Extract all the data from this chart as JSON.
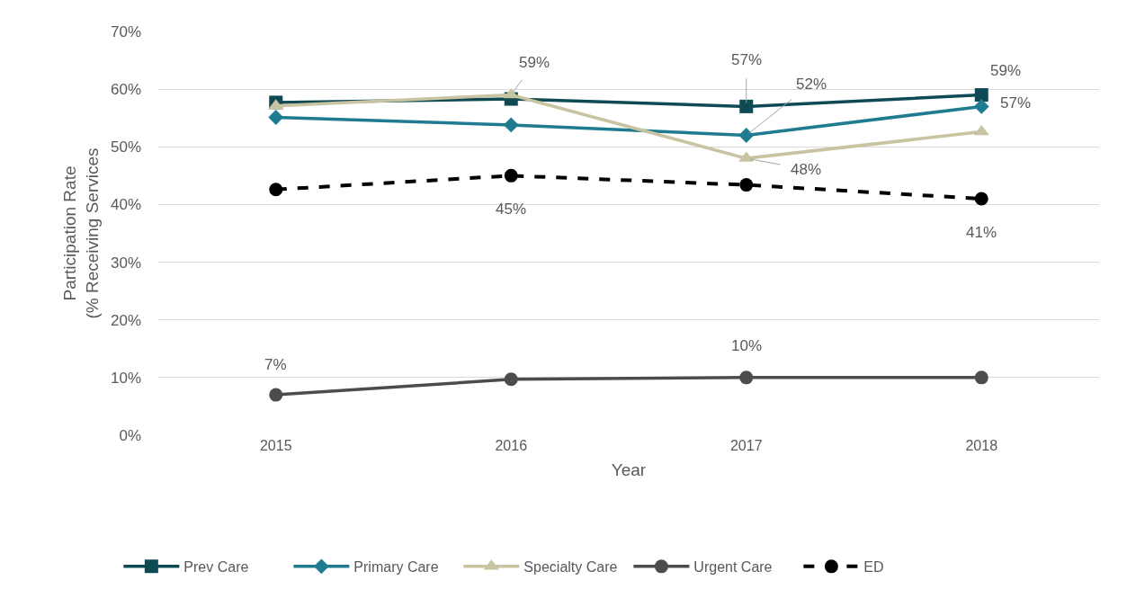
{
  "chart_data": {
    "type": "line",
    "xlabel": "Year",
    "ylabel": "Participation Rate\n(% Receiving Services",
    "categories": [
      "2015",
      "2016",
      "2017",
      "2018"
    ],
    "series": [
      {
        "name": "Prev Care",
        "color": "#0f4a54",
        "marker": "square",
        "values": [
          57.7,
          58.3,
          57,
          59
        ],
        "value_labels": [
          null,
          null,
          "57%",
          "59%"
        ]
      },
      {
        "name": "Primary Care",
        "color": "#1f7b90",
        "marker": "diamond",
        "values": [
          55.1,
          53.8,
          52,
          57
        ],
        "value_labels": [
          null,
          null,
          "52%",
          "57%"
        ]
      },
      {
        "name": "Specialty Care",
        "color": "#c8c3a1",
        "marker": "triangle",
        "values": [
          57.1,
          59,
          48,
          52.6
        ],
        "value_labels": [
          null,
          "59%",
          "48%",
          null
        ]
      },
      {
        "name": "Urgent Care",
        "color": "#4c4c4e",
        "marker": "circle",
        "values": [
          7,
          9.7,
          10,
          10
        ],
        "value_labels": [
          "7%",
          null,
          "10%",
          null
        ]
      },
      {
        "name": "ED",
        "color": "#000000",
        "marker": "circle",
        "line_style": "dashed",
        "values": [
          42.6,
          45,
          43.4,
          41
        ],
        "value_labels": [
          null,
          "45%",
          null,
          "41%"
        ]
      }
    ],
    "ylim": [
      0,
      70
    ],
    "yticks": [
      {
        "value": 0,
        "label": "0%"
      },
      {
        "value": 10,
        "label": "10%"
      },
      {
        "value": 20,
        "label": "20%"
      },
      {
        "value": 30,
        "label": "30%"
      },
      {
        "value": 40,
        "label": "40%"
      },
      {
        "value": 50,
        "label": "50%"
      },
      {
        "value": 60,
        "label": "60%"
      },
      {
        "value": 70,
        "label": "70%"
      }
    ],
    "grid": "y",
    "legend": "bottom"
  }
}
